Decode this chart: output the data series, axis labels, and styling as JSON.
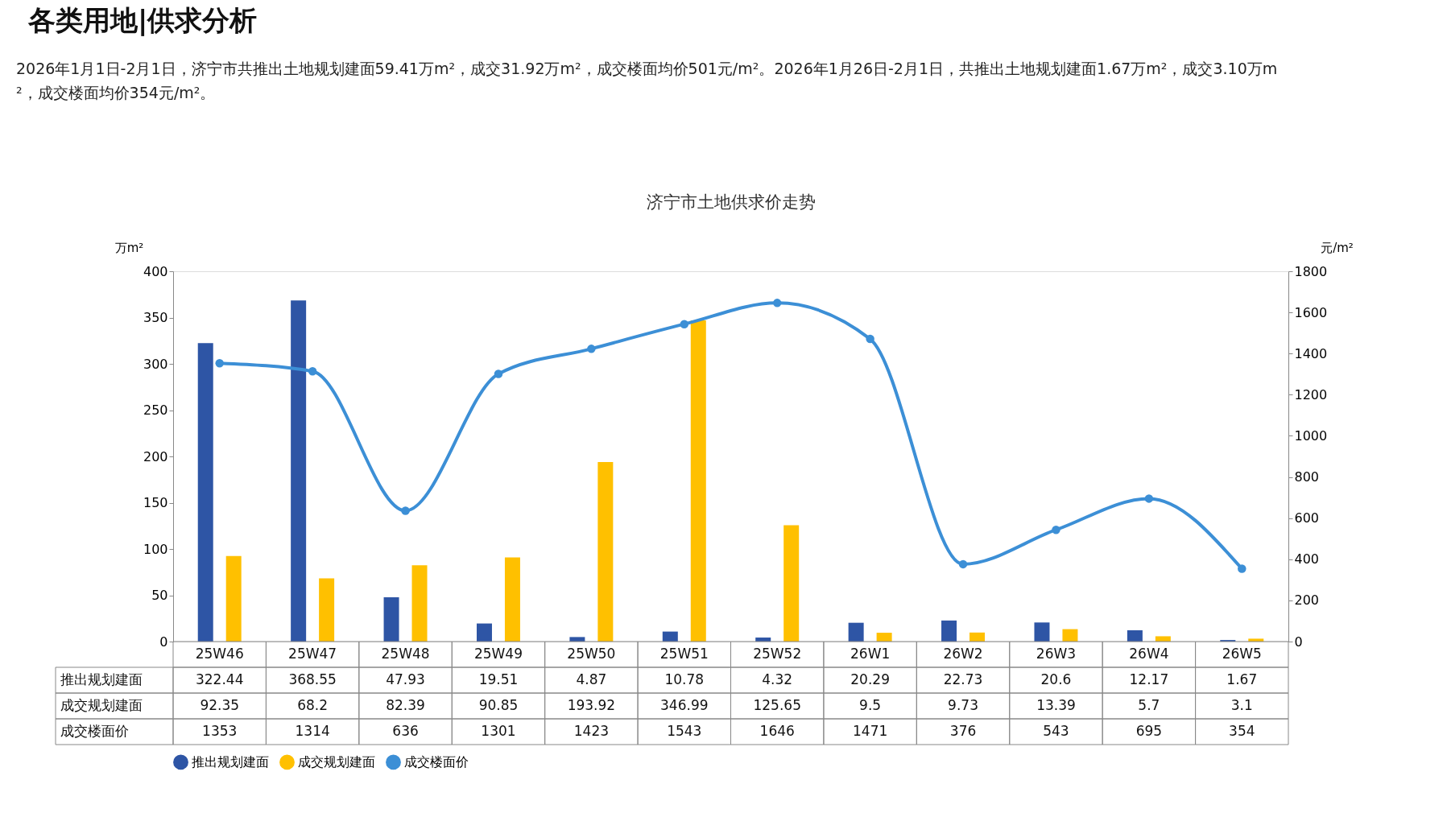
{
  "chart_data": {
    "type": "bar",
    "title": "济宁市土地供求价走势",
    "annotations": [
      "各类用地|供求分析",
      "2026年1月1日-2月1日，济宁市共推出土地规划建面59.41万m²，成交31.92万m²，成交楼面均价501元/m²。2026年1月26日-2月1日，共推出土地规划建面1.67万m²，成交3.10万m²，成交楼面均价354元/m²。"
    ],
    "ylabel": "万m²",
    "y2label": "元/m²",
    "categories": [
      "25W46",
      "25W47",
      "25W48",
      "25W49",
      "25W50",
      "25W51",
      "25W52",
      "26W1",
      "26W2",
      "26W3",
      "26W4",
      "26W5"
    ],
    "series": [
      {
        "name": "推出规划建面",
        "color": "#2e55a5",
        "values": [
          322.44,
          368.55,
          47.93,
          19.51,
          4.87,
          10.78,
          4.32,
          20.29,
          22.73,
          20.6,
          12.17,
          1.67
        ]
      },
      {
        "name": "成交规划建面",
        "color": "#ffc000",
        "values": [
          92.35,
          68.2,
          82.39,
          90.85,
          193.92,
          346.99,
          125.65,
          9.5,
          9.73,
          13.39,
          5.7,
          3.1
        ]
      },
      {
        "name": "成交楼面价",
        "type": "line",
        "axis": "y2",
        "color": "#3c8fd6",
        "marker": "circle",
        "line_style": "solid",
        "values": [
          1353,
          1314,
          636,
          1301,
          1423,
          1543,
          1646,
          1471,
          376,
          543,
          695,
          354
        ]
      }
    ],
    "ylim": [
      0,
      400
    ],
    "yticks": [
      0,
      50,
      100,
      150,
      200,
      250,
      300,
      350,
      400
    ],
    "y2lim": [
      0,
      1800
    ],
    "y2ticks": [
      0,
      200,
      400,
      600,
      800,
      1000,
      1200,
      1400,
      1600,
      1800
    ],
    "grid": false,
    "legend": "bottom",
    "data_labels": true
  }
}
